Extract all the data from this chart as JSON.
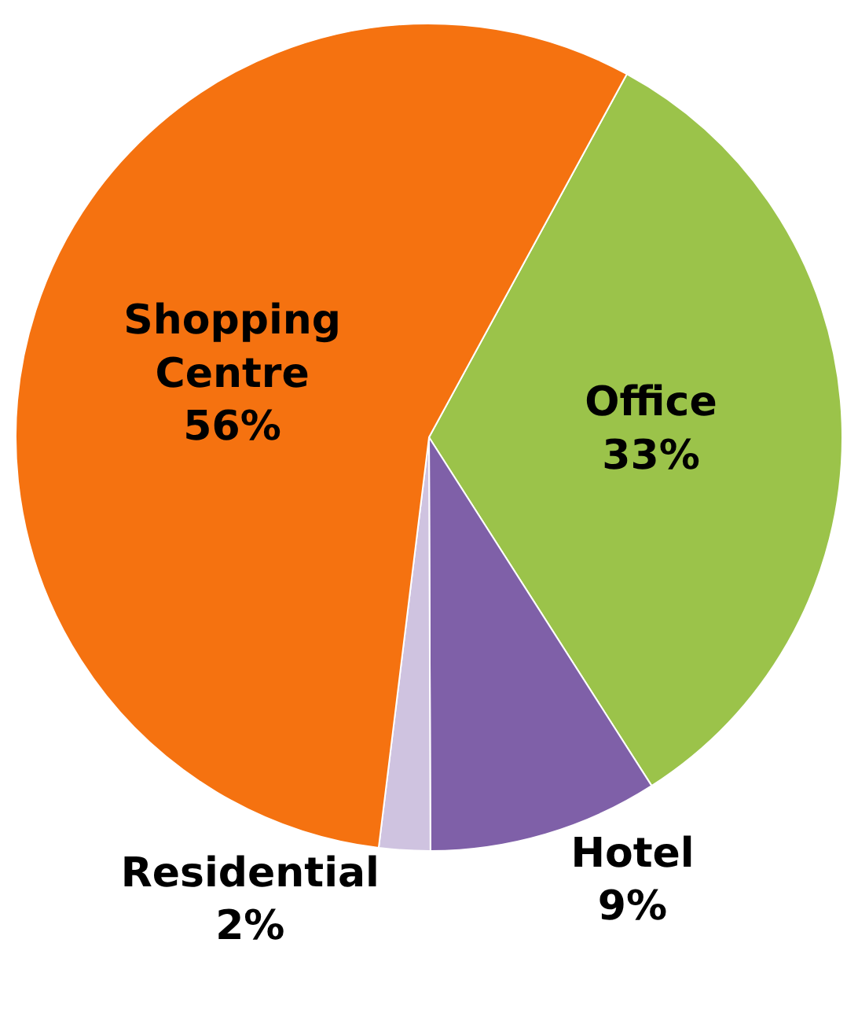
{
  "chart_data": {
    "type": "pie",
    "categories": [
      "Office",
      "Hotel",
      "Residential",
      "Shopping Centre"
    ],
    "values": [
      33,
      9,
      2,
      56
    ],
    "colors": [
      "#9bc34a",
      "#7f60a8",
      "#cfc3e0",
      "#f57210"
    ],
    "value_labels": [
      "33%",
      "9%",
      "2%",
      "56%"
    ]
  }
}
